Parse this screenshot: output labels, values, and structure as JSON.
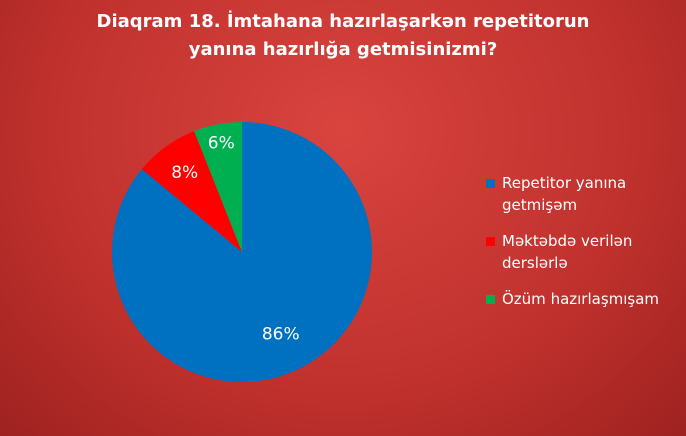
{
  "chart_data": {
    "type": "pie",
    "title": "Diaqram 18. İmtahana hazırlaşarkən repetitorun yanına hazırlığa getmisinizmi?",
    "categories": [
      "Repetitor yanına getmişəm",
      "Məktəbdə verilən derslərlə",
      "Özüm hazırlaşmışam"
    ],
    "values": [
      86,
      8,
      6
    ],
    "value_labels": [
      "86%",
      "8%",
      "6%"
    ],
    "colors": [
      "#0070c0",
      "#ff0000",
      "#00b050"
    ],
    "legend": "right"
  }
}
